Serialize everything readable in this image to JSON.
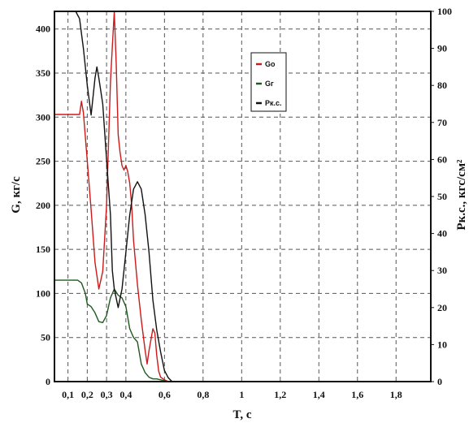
{
  "chart_data": {
    "type": "line",
    "xlabel": "T, с",
    "ylabel_left": "G, кг/с",
    "ylabel_right": "Pк.с., кгс/см²",
    "xlim": [
      0.03,
      1.98
    ],
    "ylim_left": [
      0,
      420
    ],
    "ylim_right": [
      0,
      100
    ],
    "x_ticks": [
      {
        "v": 0.1,
        "label": "0,1"
      },
      {
        "v": 0.2,
        "label": "0,2"
      },
      {
        "v": 0.3,
        "label": "0,3"
      },
      {
        "v": 0.4,
        "label": "0,4"
      },
      {
        "v": 0.6,
        "label": "0,6"
      },
      {
        "v": 0.8,
        "label": "0,8"
      },
      {
        "v": 1.0,
        "label": "1"
      },
      {
        "v": 1.2,
        "label": "1,2"
      },
      {
        "v": 1.4,
        "label": "1,4"
      },
      {
        "v": 1.6,
        "label": "1,6"
      },
      {
        "v": 1.8,
        "label": "1,8"
      }
    ],
    "y_ticks_left": [
      0,
      50,
      100,
      150,
      200,
      250,
      300,
      350,
      400
    ],
    "y_ticks_right": [
      0,
      10,
      20,
      30,
      40,
      50,
      60,
      70,
      80,
      90,
      100
    ],
    "grid": true,
    "legend_position": "top-right",
    "series": [
      {
        "name": "Gо",
        "axis": "left",
        "color": "#cc1a1a",
        "x": [
          0.03,
          0.16,
          0.17,
          0.18,
          0.2,
          0.22,
          0.24,
          0.26,
          0.28,
          0.3,
          0.32,
          0.33,
          0.34,
          0.35,
          0.36,
          0.37,
          0.38,
          0.39,
          0.4,
          0.41,
          0.42,
          0.43,
          0.44,
          0.46,
          0.48,
          0.5,
          0.51,
          0.52,
          0.54,
          0.55,
          0.56,
          0.57,
          0.58,
          0.6,
          0.62
        ],
        "y": [
          303,
          303,
          318,
          305,
          250,
          195,
          135,
          105,
          125,
          200,
          340,
          380,
          425,
          360,
          280,
          260,
          245,
          240,
          245,
          238,
          225,
          200,
          160,
          110,
          70,
          35,
          20,
          35,
          60,
          55,
          30,
          12,
          5,
          2,
          0
        ]
      },
      {
        "name": "Gг",
        "axis": "left",
        "color": "#1e5a1e",
        "x": [
          0.03,
          0.15,
          0.17,
          0.19,
          0.2,
          0.22,
          0.24,
          0.26,
          0.28,
          0.3,
          0.32,
          0.34,
          0.36,
          0.38,
          0.4,
          0.42,
          0.44,
          0.46,
          0.48,
          0.5,
          0.52,
          0.54,
          0.56,
          0.58,
          0.6,
          0.62
        ],
        "y": [
          115,
          115,
          112,
          100,
          88,
          85,
          78,
          68,
          67,
          75,
          95,
          105,
          98,
          95,
          85,
          60,
          50,
          45,
          20,
          10,
          5,
          3,
          3,
          2,
          1,
          0
        ]
      },
      {
        "name": "Pк.с.",
        "axis": "right",
        "color": "#111111",
        "x": [
          0.03,
          0.14,
          0.16,
          0.18,
          0.2,
          0.22,
          0.24,
          0.25,
          0.26,
          0.28,
          0.3,
          0.32,
          0.33,
          0.34,
          0.36,
          0.38,
          0.4,
          0.42,
          0.44,
          0.46,
          0.48,
          0.5,
          0.52,
          0.54,
          0.56,
          0.58,
          0.6,
          0.62,
          0.64
        ],
        "y": [
          100,
          100,
          98,
          90,
          80,
          72,
          82,
          85,
          82,
          75,
          60,
          45,
          30,
          25,
          20,
          25,
          35,
          45,
          52,
          54,
          52,
          45,
          35,
          22,
          14,
          8,
          3,
          1,
          0
        ]
      }
    ]
  }
}
